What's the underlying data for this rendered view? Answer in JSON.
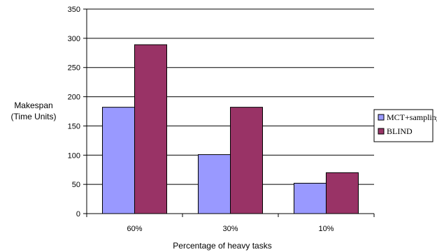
{
  "chart_data": {
    "type": "bar",
    "title": "",
    "xlabel": "Percentage of heavy tasks",
    "ylabel_lines": [
      "Makespan",
      "(Time Units)"
    ],
    "categories": [
      "60%",
      "30%",
      "10%"
    ],
    "series": [
      {
        "name": "MCT+sampling",
        "values": [
          182,
          101,
          52
        ],
        "color": "#9999ff"
      },
      {
        "name": "BLIND",
        "values": [
          289,
          182,
          70
        ],
        "color": "#993366"
      }
    ],
    "ylim": [
      0,
      350
    ],
    "yticks": [
      0,
      50,
      100,
      150,
      200,
      250,
      300,
      350
    ],
    "grid": true,
    "legend": "right"
  }
}
